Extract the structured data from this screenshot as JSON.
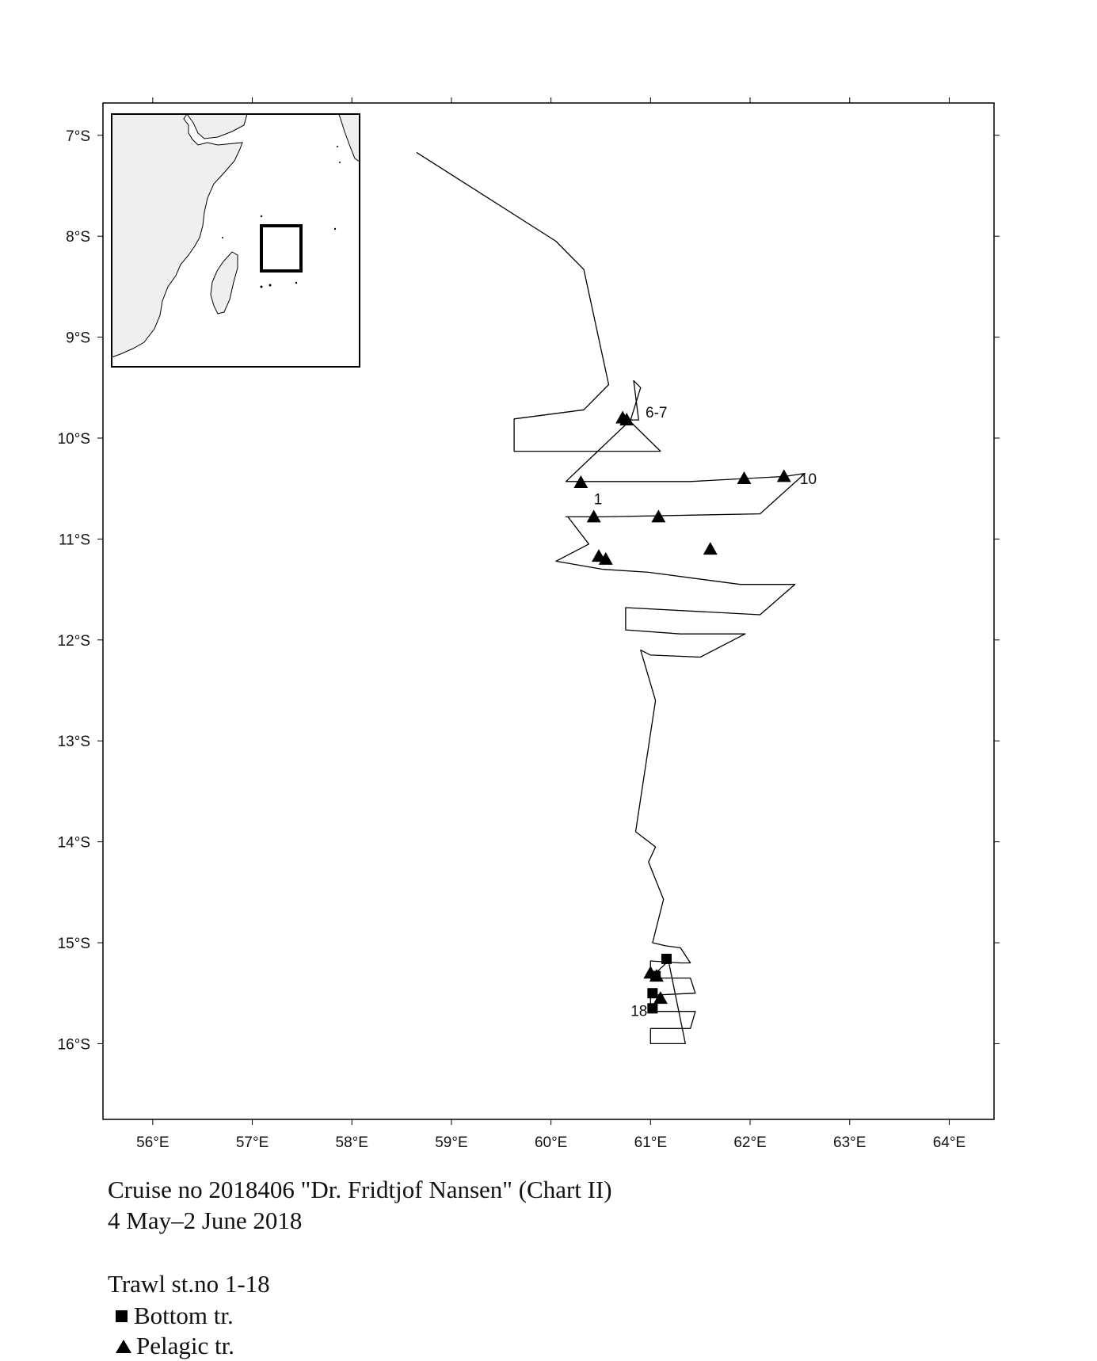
{
  "caption": {
    "line1": "Cruise no 2018406  \"Dr. Fridtjof Nansen\" (Chart II)",
    "line2": "4 May–2 June 2018"
  },
  "legend": {
    "title": "Trawl st.no 1-18",
    "bottom": "Bottom tr.",
    "pelagic": "Pelagic tr."
  },
  "map": {
    "lon_ticks": [
      "56°E",
      "57°E",
      "58°E",
      "59°E",
      "60°E",
      "61°E",
      "62°E",
      "63°E",
      "64°E"
    ],
    "lat_ticks": [
      "7°S",
      "8°S",
      "9°S",
      "10°S",
      "11°S",
      "12°S",
      "13°S",
      "14°S",
      "15°S",
      "16°S"
    ],
    "lon_range": [
      55.5,
      64.45
    ],
    "lat_range": [
      -16.75,
      -6.68
    ],
    "inset": {
      "land_color": "#efefef",
      "highlight": "study-area-box"
    },
    "cruise_track": [
      [
        58.65,
        -7.17
      ],
      [
        60.05,
        -8.05
      ],
      [
        60.33,
        -8.33
      ],
      [
        60.58,
        -9.47
      ],
      [
        60.33,
        -9.72
      ],
      [
        59.63,
        -9.81
      ],
      [
        59.63,
        -10.13
      ],
      [
        61.1,
        -10.13
      ],
      [
        60.78,
        -9.82
      ],
      [
        60.88,
        -9.82
      ],
      [
        60.83,
        -9.43
      ],
      [
        60.9,
        -9.5
      ],
      [
        60.8,
        -9.82
      ],
      [
        60.15,
        -10.43
      ],
      [
        60.35,
        -10.43
      ],
      [
        60.65,
        -10.43
      ],
      [
        61.4,
        -10.43
      ],
      [
        62.35,
        -10.38
      ],
      [
        62.55,
        -10.35
      ],
      [
        62.1,
        -10.75
      ],
      [
        60.52,
        -10.78
      ],
      [
        60.15,
        -10.78
      ],
      [
        60.17,
        -10.78
      ],
      [
        60.38,
        -11.05
      ],
      [
        60.05,
        -11.22
      ],
      [
        60.52,
        -11.3
      ],
      [
        60.98,
        -11.33
      ],
      [
        61.9,
        -11.45
      ],
      [
        62.45,
        -11.45
      ],
      [
        62.1,
        -11.75
      ],
      [
        60.75,
        -11.68
      ],
      [
        60.75,
        -11.9
      ],
      [
        61.3,
        -11.94
      ],
      [
        61.95,
        -11.94
      ],
      [
        61.5,
        -12.17
      ],
      [
        61.0,
        -12.15
      ],
      [
        60.9,
        -12.1
      ],
      [
        61.05,
        -12.6
      ],
      [
        60.85,
        -13.9
      ],
      [
        61.05,
        -14.05
      ],
      [
        60.98,
        -14.2
      ],
      [
        61.13,
        -14.57
      ],
      [
        61.02,
        -15.0
      ],
      [
        61.15,
        -15.03
      ],
      [
        61.3,
        -15.05
      ],
      [
        61.4,
        -15.2
      ],
      [
        61.3,
        -15.2
      ],
      [
        61.0,
        -15.18
      ],
      [
        61.0,
        -15.35
      ],
      [
        61.4,
        -15.35
      ],
      [
        61.45,
        -15.5
      ],
      [
        61.0,
        -15.52
      ],
      [
        61.0,
        -15.68
      ],
      [
        61.45,
        -15.68
      ],
      [
        61.4,
        -15.85
      ],
      [
        61.0,
        -15.85
      ],
      [
        61.0,
        -16.0
      ],
      [
        61.35,
        -16.0
      ],
      [
        61.18,
        -15.18
      ],
      [
        61.03,
        -15.32
      ]
    ],
    "stations": [
      {
        "type": "pelagic",
        "lon": 60.72,
        "lat": -9.8
      },
      {
        "type": "pelagic",
        "lon": 60.76,
        "lat": -9.82
      },
      {
        "type": "pelagic",
        "lon": 60.3,
        "lat": -10.44
      },
      {
        "type": "pelagic",
        "lon": 60.43,
        "lat": -10.78
      },
      {
        "type": "pelagic",
        "lon": 61.08,
        "lat": -10.78
      },
      {
        "type": "pelagic",
        "lon": 61.94,
        "lat": -10.4
      },
      {
        "type": "pelagic",
        "lon": 62.34,
        "lat": -10.38
      },
      {
        "type": "pelagic",
        "lon": 61.6,
        "lat": -11.1
      },
      {
        "type": "pelagic",
        "lon": 60.48,
        "lat": -11.17
      },
      {
        "type": "pelagic",
        "lon": 60.55,
        "lat": -11.2
      },
      {
        "type": "pelagic",
        "lon": 61.0,
        "lat": -15.3
      },
      {
        "type": "pelagic",
        "lon": 61.06,
        "lat": -15.33
      },
      {
        "type": "pelagic",
        "lon": 61.1,
        "lat": -15.55
      },
      {
        "type": "bottom",
        "lon": 61.16,
        "lat": -15.16
      },
      {
        "type": "bottom",
        "lon": 61.05,
        "lat": -15.33
      },
      {
        "type": "bottom",
        "lon": 61.02,
        "lat": -15.5
      },
      {
        "type": "bottom",
        "lon": 61.02,
        "lat": -15.65
      }
    ],
    "station_labels": [
      {
        "text": "6-7",
        "lon": 60.95,
        "lat": -9.74
      },
      {
        "text": "10",
        "lon": 62.5,
        "lat": -10.4
      },
      {
        "text": "1",
        "lon": 60.43,
        "lat": -10.6
      },
      {
        "text": "18",
        "lon": 60.8,
        "lat": -15.67
      }
    ]
  }
}
